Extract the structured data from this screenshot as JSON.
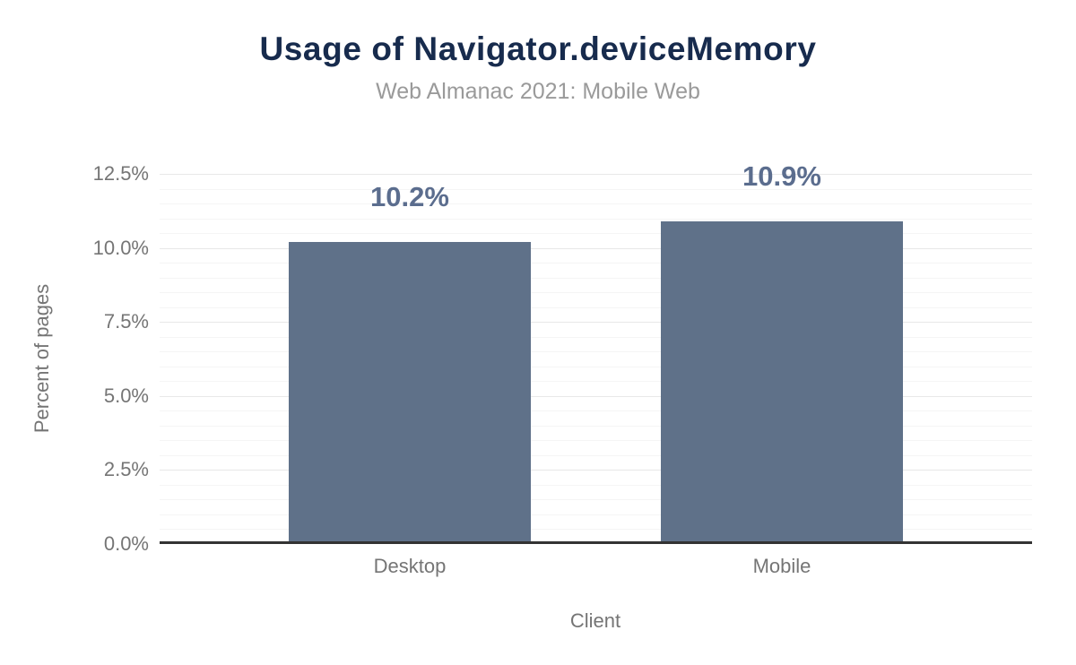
{
  "header": {
    "title": "Usage of Navigator.deviceMemory",
    "subtitle": "Web Almanac 2021: Mobile Web"
  },
  "chart_data": {
    "type": "bar",
    "title": "Usage of Navigator.deviceMemory",
    "subtitle": "Web Almanac 2021: Mobile Web",
    "categories": [
      "Desktop",
      "Mobile"
    ],
    "values": [
      10.2,
      10.9
    ],
    "data_labels": [
      "10.2%",
      "10.9%"
    ],
    "xlabel": "Client",
    "ylabel": "Percent of pages",
    "ylim": [
      0,
      12.5
    ],
    "ytick_step": 2.5,
    "minor_tick_step": 0.5,
    "ytick_labels": [
      "0.0%",
      "2.5%",
      "5.0%",
      "7.5%",
      "10.0%",
      "12.5%"
    ],
    "grid": "on",
    "legend": "none",
    "colors": {
      "bar": "#5f7189",
      "data_label": "#5b6d8e",
      "title": "#172b4d",
      "subtitle": "#9a9a9a",
      "axis_text": "#757575",
      "axis_line": "#333333",
      "grid_major": "#e8e8e8",
      "grid_minor": "#f5f5f5"
    }
  }
}
